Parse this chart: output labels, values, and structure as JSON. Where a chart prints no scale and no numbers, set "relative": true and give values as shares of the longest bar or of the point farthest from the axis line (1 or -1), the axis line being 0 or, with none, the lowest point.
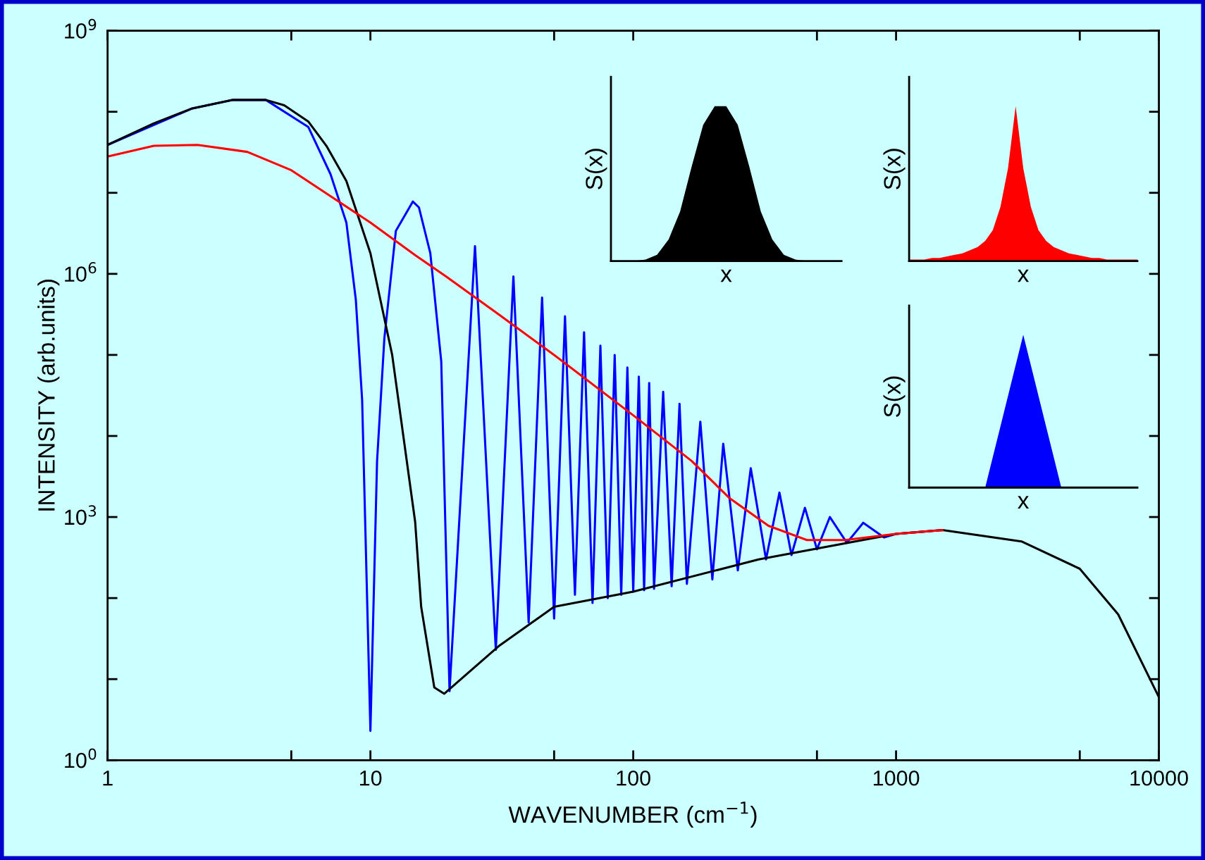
{
  "chart_data": [
    {
      "type": "line",
      "xlabel": "WAVENUMBER (cm$^{−1}$)",
      "ylabel": "INTENSITY (arb.units)",
      "log": "xy",
      "xlim": [
        1,
        10000
      ],
      "ylim": [
        1,
        1000000000
      ],
      "xticks": [
        1,
        {
          "value": 5,
          "label": null
        },
        10,
        {
          "value": 50,
          "label": null
        },
        100,
        {
          "value": 500,
          "label": null
        },
        1000,
        {
          "value": 5000,
          "label": null
        },
        10000
      ],
      "yticks": [
        {
          "value": 1,
          "label": "10$^{0}$"
        },
        {
          "value": 10,
          "label": null
        },
        {
          "value": 100,
          "label": null
        },
        {
          "value": 1000,
          "label": "10$^{3}$"
        },
        {
          "value": 10000,
          "label": null
        },
        {
          "value": 100000,
          "label": null
        },
        {
          "value": 1000000,
          "label": "10$^{6}$"
        },
        {
          "value": 10000000,
          "label": null
        },
        {
          "value": 100000000,
          "label": null
        },
        {
          "value": 1000000000,
          "label": "10$^{9}$"
        }
      ],
      "grid": false,
      "legend": false,
      "line_style": "solid",
      "marker": "none",
      "series": [
        {
          "color": "#0000ff",
          "x": [
            1,
            2.1,
            3.0,
            4.0,
            5.8,
            7.05,
            8.1,
            8.8,
            9.3,
            10,
            10.6,
            11.3,
            12.5,
            14.5,
            15.3,
            16.9,
            18.6,
            20,
            25,
            30,
            35,
            40,
            45,
            50,
            55,
            60,
            65,
            70,
            75,
            80,
            85,
            90,
            95,
            100,
            105,
            110,
            115,
            120,
            130,
            140,
            150,
            160,
            180,
            200,
            220,
            250,
            280,
            320,
            360,
            400,
            450,
            500,
            560,
            650,
            750,
            900,
            1000,
            1500
          ],
          "values": [
            39000000.0,
            110000000.0,
            140000000.0,
            140000000.0,
            65000000.0,
            17000000.0,
            4300000.0,
            480000.0,
            28000.0,
            2.3,
            4900,
            160000.0,
            3400000.0,
            7800000.0,
            6600000.0,
            1800000.0,
            83000.0,
            7.1,
            2200000.0,
            23,
            930000.0,
            50,
            510000.0,
            56,
            300000.0,
            110,
            190000.0,
            87,
            130000.0,
            100,
            100000.0,
            110,
            70000.0,
            120,
            54000.0,
            125,
            45000.0,
            130,
            35000.0,
            140,
            25000.0,
            150,
            15000.0,
            170,
            8000,
            220,
            4000,
            300,
            2000,
            340,
            1300,
            400,
            1000,
            480,
            850,
            560,
            620,
            690
          ]
        },
        {
          "color": "#000000",
          "x": [
            1,
            1.5,
            2.1,
            3.0,
            4.0,
            4.7,
            5.8,
            6.8,
            8.1,
            10,
            12.1,
            14.8,
            15.6,
            17.5,
            19.1,
            31,
            50,
            100,
            300,
            1000,
            1500,
            3000,
            5000,
            7000,
            10000
          ],
          "values": [
            39000000.0,
            72000000.0,
            110000000.0,
            140000000.0,
            140000000.0,
            120000000.0,
            76000000.0,
            38000000.0,
            14000000.0,
            1800000.0,
            100000.0,
            870,
            78,
            7.9,
            6.6,
            26,
            78,
            120,
            300,
            620,
            690,
            500,
            230,
            63,
            6.0
          ]
        },
        {
          "color": "#ff0000",
          "x": [
            1,
            1.5,
            2.2,
            3.4,
            5.0,
            7.05,
            10,
            14.8,
            19.4,
            31,
            50,
            100,
            167,
            233,
            327,
            458,
            640,
            1000,
            1500
          ],
          "values": [
            28000000.0,
            38000000.0,
            39000000.0,
            32000000.0,
            19000000.0,
            9100000.0,
            4300000.0,
            1700000.0,
            930000.0,
            310000.0,
            100000.0,
            18000.0,
            4900,
            1700,
            780,
            520,
            520,
            620,
            690
          ]
        }
      ]
    },
    {
      "type": "area",
      "relative": true,
      "xlabel": "x",
      "ylabel": "S(x)",
      "tick_labels": false,
      "categories": [
        null,
        null,
        null,
        null,
        null,
        null,
        null,
        null,
        null,
        null,
        null,
        null,
        null,
        null,
        null,
        null,
        null,
        null,
        null,
        null,
        null
      ],
      "series": [
        {
          "color": "#000000",
          "values": [
            0,
            0,
            0,
            0.01,
            0.04,
            0.14,
            0.32,
            0.61,
            0.88,
            1,
            1,
            0.88,
            0.61,
            0.32,
            0.14,
            0.04,
            0.01,
            0,
            0,
            0,
            0
          ]
        }
      ]
    },
    {
      "type": "area",
      "relative": true,
      "xlabel": "x",
      "ylabel": "S(x)",
      "tick_labels": false,
      "categories": [
        null,
        null,
        null,
        null,
        null,
        null,
        null,
        null,
        null,
        null,
        null,
        null,
        null,
        null,
        null,
        null,
        null,
        null,
        null,
        null,
        null,
        null,
        null,
        null,
        null,
        null,
        null,
        null,
        null,
        null,
        null
      ],
      "series": [
        {
          "color": "#ff0000",
          "values": [
            0.01,
            0.01,
            0.01,
            0.02,
            0.02,
            0.03,
            0.04,
            0.05,
            0.07,
            0.09,
            0.13,
            0.2,
            0.35,
            0.6,
            1,
            0.6,
            0.35,
            0.2,
            0.13,
            0.09,
            0.07,
            0.05,
            0.04,
            0.03,
            0.02,
            0.02,
            0.01,
            0.01,
            0.01,
            0.01,
            0.01
          ]
        }
      ]
    },
    {
      "type": "area",
      "relative": true,
      "xlabel": "x",
      "ylabel": "S(x)",
      "tick_labels": false,
      "categories": [
        null,
        null,
        null,
        null,
        null,
        null,
        null,
        null,
        null,
        null,
        null,
        null,
        null,
        null,
        null,
        null,
        null,
        null,
        null,
        null,
        null,
        null,
        null,
        null,
        null,
        null,
        null,
        null,
        null,
        null,
        null
      ],
      "series": [
        {
          "color": "#0000ff",
          "values": [
            0,
            0,
            0,
            0,
            0,
            0,
            0,
            0,
            0,
            0,
            0,
            0.2,
            0.4,
            0.6,
            0.8,
            1,
            0.8,
            0.6,
            0.4,
            0.2,
            0,
            0,
            0,
            0,
            0,
            0,
            0,
            0,
            0,
            0,
            0
          ]
        }
      ]
    }
  ]
}
